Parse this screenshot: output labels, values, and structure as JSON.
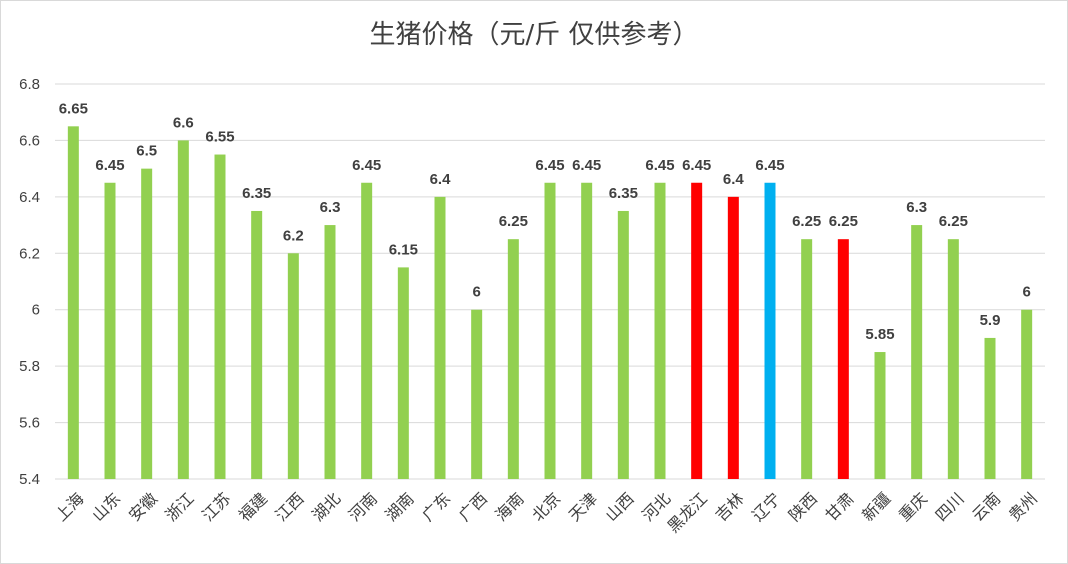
{
  "chart_data": {
    "type": "bar",
    "title": "生猪价格（元/斤 仅供参考）",
    "xlabel": "",
    "ylabel": "",
    "ylim": [
      5.4,
      6.8
    ],
    "yticks": [
      "5.4",
      "5.6",
      "5.8",
      "6",
      "6.2",
      "6.4",
      "6.6",
      "6.8"
    ],
    "grid": true,
    "legend": "none",
    "categories": [
      "上海",
      "山东",
      "安徽",
      "浙江",
      "江苏",
      "福建",
      "江西",
      "湖北",
      "河南",
      "湖南",
      "广东",
      "广西",
      "海南",
      "北京",
      "天津",
      "山西",
      "河北",
      "黑龙江",
      "吉林",
      "辽宁",
      "陕西",
      "甘肃",
      "新疆",
      "重庆",
      "四川",
      "云南",
      "贵州"
    ],
    "values": [
      6.65,
      6.45,
      6.5,
      6.6,
      6.55,
      6.35,
      6.2,
      6.3,
      6.45,
      6.15,
      6.4,
      6,
      6.25,
      6.45,
      6.45,
      6.35,
      6.45,
      6.45,
      6.4,
      6.45,
      6.25,
      6.25,
      5.85,
      6.3,
      6.25,
      5.9,
      6
    ],
    "labels": [
      "6.65",
      "6.45",
      "6.5",
      "6.6",
      "6.55",
      "6.35",
      "6.2",
      "6.3",
      "6.45",
      "6.15",
      "6.4",
      "6",
      "6.25",
      "6.45",
      "6.45",
      "6.35",
      "6.45",
      "6.45",
      "6.4",
      "6.45",
      "6.25",
      "6.25",
      "5.85",
      "6.3",
      "6.25",
      "5.9",
      "6"
    ],
    "colors": [
      "#92d050",
      "#92d050",
      "#92d050",
      "#92d050",
      "#92d050",
      "#92d050",
      "#92d050",
      "#92d050",
      "#92d050",
      "#92d050",
      "#92d050",
      "#92d050",
      "#92d050",
      "#92d050",
      "#92d050",
      "#92d050",
      "#92d050",
      "#ff0000",
      "#ff0000",
      "#00b0f0",
      "#92d050",
      "#ff0000",
      "#92d050",
      "#92d050",
      "#92d050",
      "#92d050",
      "#92d050"
    ]
  }
}
